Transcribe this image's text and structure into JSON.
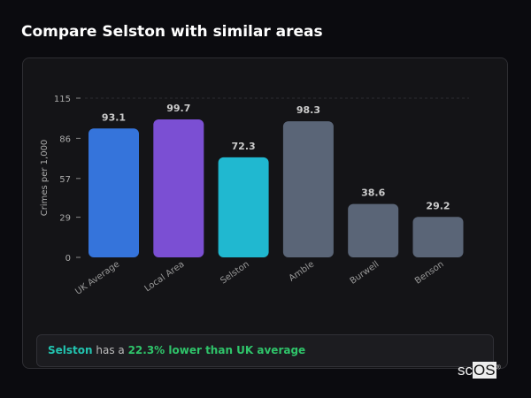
{
  "title": "Compare Selston with similar areas",
  "chart_data": {
    "type": "bar",
    "title": "",
    "xlabel": "",
    "ylabel": "Crimes per 1,000",
    "ylim": [
      0,
      115
    ],
    "yticks": [
      0,
      29,
      57,
      86,
      115
    ],
    "categories": [
      "UK Average",
      "Local Area",
      "Selston",
      "Amble",
      "Burwell",
      "Benson"
    ],
    "values": [
      93.1,
      99.7,
      72.3,
      98.3,
      38.6,
      29.2
    ],
    "value_labels": [
      "93.1",
      "99.7",
      "72.3",
      "98.3",
      "38.6",
      "29.2"
    ],
    "colors": [
      "#3574db",
      "#7b4fd3",
      "#20b8d0",
      "#5a6577",
      "#5a6577",
      "#5a6577"
    ],
    "grid": "top dashed line at max"
  },
  "insight": {
    "area": "Selston",
    "middle": " has a ",
    "comparison": "22.3% lower than UK average"
  },
  "logo": {
    "text1": "sc",
    "text2": "OS",
    "mark": "®"
  }
}
